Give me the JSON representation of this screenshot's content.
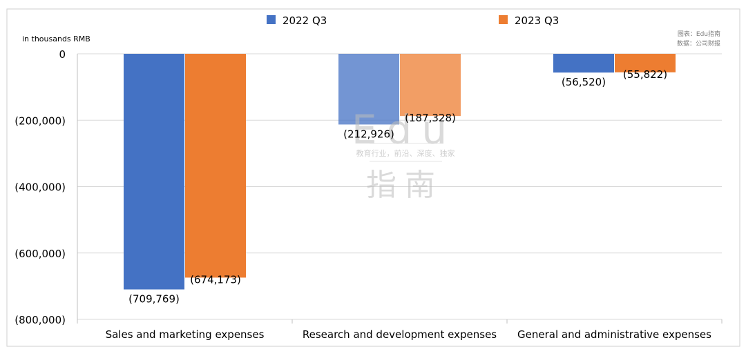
{
  "chart_data": {
    "type": "bar",
    "title": "",
    "unit_label": "in thousands RMB",
    "source_lines": [
      "图表：Edu指南",
      "数据：公司财报"
    ],
    "watermark": {
      "logo": "Edu",
      "slogan": "教育行业，前沿、深度、独家",
      "name": "指南"
    },
    "categories": [
      "Sales and marketing expenses",
      "Research and development expenses",
      "General and administrative expenses"
    ],
    "series": [
      {
        "name": "2022 Q3",
        "color": "#4472c4",
        "values": [
          -709769,
          -212926,
          -56520
        ],
        "labels": [
          "(709,769)",
          "(212,926)",
          "(56,520)"
        ]
      },
      {
        "name": "2023 Q3",
        "color": "#ed7d31",
        "values": [
          -674173,
          -187328,
          -55822
        ],
        "labels": [
          "(674,173)",
          "(187,328)",
          "(55,822)"
        ]
      }
    ],
    "ylim": [
      -800000,
      0
    ],
    "yticks": [
      0,
      -200000,
      -400000,
      -600000,
      -800000
    ],
    "ytick_labels": [
      "0",
      "(200,000)",
      "(400,000)",
      "(600,000)",
      "(800,000)"
    ],
    "grid": true,
    "legend_position": "top"
  }
}
